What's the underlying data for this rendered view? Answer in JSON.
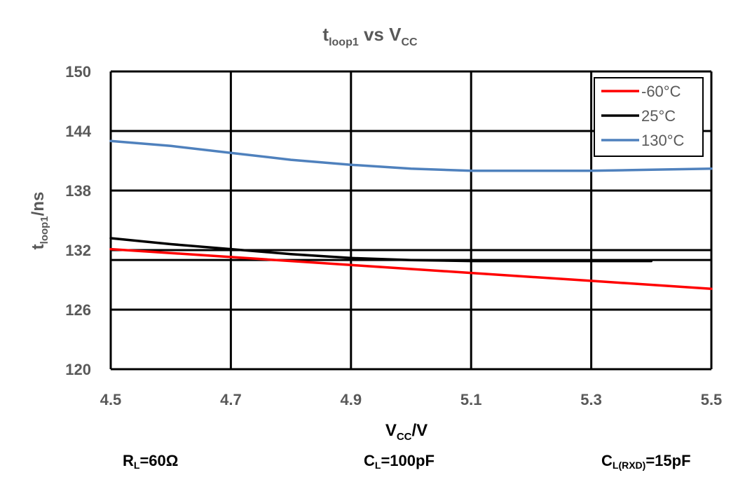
{
  "chart_data": {
    "type": "line",
    "title": {
      "main": "t",
      "sub": "loop1",
      "mid": " vs V",
      "sub2": "CC"
    },
    "xlabel": {
      "main": "V",
      "sub": "CC",
      "tail": "/V"
    },
    "ylabel": {
      "main": "t",
      "sub": "loop1",
      "tail": "/ns"
    },
    "xlim": [
      4.5,
      5.5
    ],
    "ylim": [
      120,
      150
    ],
    "xticks": [
      4.5,
      4.7,
      4.9,
      5.1,
      5.3,
      5.5
    ],
    "xtick_labels": [
      "4.5",
      "4.7",
      "4.9",
      "5.1",
      "5.3",
      "5.5"
    ],
    "yticks": [
      120,
      126,
      132,
      138,
      144,
      150
    ],
    "ytick_labels": [
      "120",
      "126",
      "132",
      "138",
      "144",
      "150"
    ],
    "extra_hlines": [
      131
    ],
    "grid": true,
    "legend_position": "top-right",
    "series": [
      {
        "name": "-60°C",
        "color": "#ff0000",
        "x": [
          4.5,
          4.7,
          4.9,
          5.1,
          5.3,
          5.5
        ],
        "y": [
          132.1,
          131.3,
          130.5,
          129.7,
          128.9,
          128.1
        ]
      },
      {
        "name": "25°C",
        "color": "#000000",
        "x": [
          4.5,
          4.6,
          4.7,
          4.8,
          4.9,
          5.0,
          5.1,
          5.2,
          5.3,
          5.4
        ],
        "y": [
          133.2,
          132.6,
          132.1,
          131.6,
          131.2,
          131.0,
          130.9,
          130.9,
          130.9,
          130.9
        ]
      },
      {
        "name": "130°C",
        "color": "#4f81bd",
        "x": [
          4.5,
          4.6,
          4.7,
          4.8,
          4.9,
          5.0,
          5.1,
          5.2,
          5.3,
          5.4,
          5.5
        ],
        "y": [
          143.0,
          142.5,
          141.8,
          141.1,
          140.6,
          140.2,
          140.0,
          140.0,
          140.0,
          140.1,
          140.2
        ]
      }
    ]
  },
  "conditions": {
    "rl": {
      "main": "R",
      "sub": "L",
      "tail": "=60Ω"
    },
    "cl": {
      "main": "C",
      "sub": "L",
      "tail": "=100pF"
    },
    "clrxd": {
      "main": "C",
      "sub": "L(RXD)",
      "tail": "=15pF"
    }
  }
}
